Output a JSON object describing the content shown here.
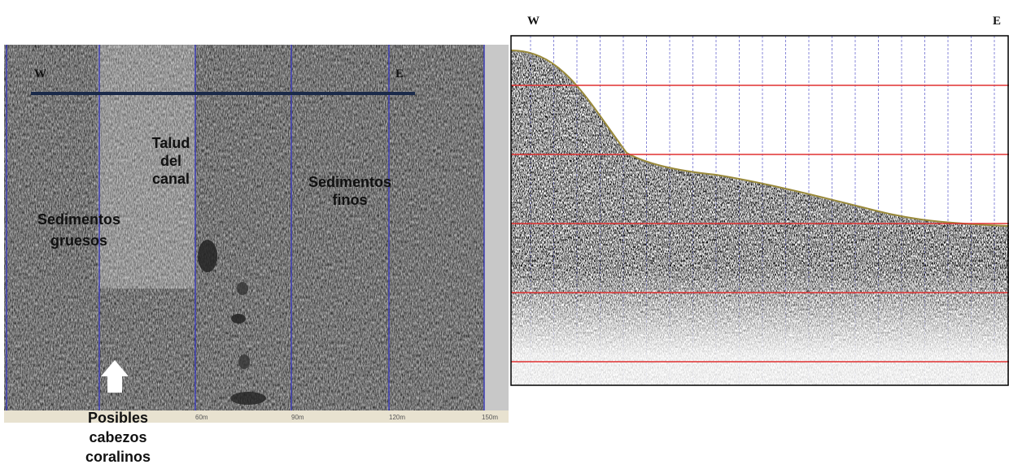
{
  "left_panel": {
    "west": "W",
    "east": "E",
    "labels": [
      {
        "lines": [
          "Talud",
          "del",
          "canal"
        ]
      },
      {
        "lines": [
          "Sedimentos",
          "finos"
        ]
      },
      {
        "lines": [
          "Sedimentos",
          "gruesos"
        ]
      },
      {
        "lines": [
          "Posibles",
          "cabezos",
          "coralinos"
        ]
      }
    ],
    "scale": [
      "60m",
      "90m",
      "120m",
      "150m"
    ]
  },
  "right_panel": {
    "west": "W",
    "east": "E"
  }
}
